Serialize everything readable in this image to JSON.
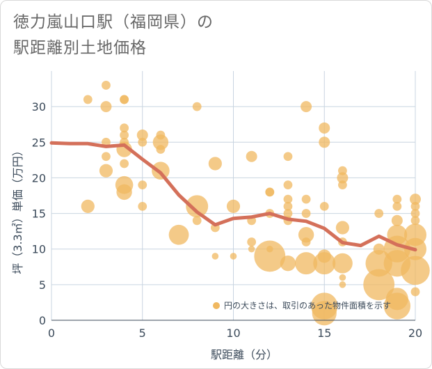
{
  "header": {
    "title_line1": "徳力嵐山口駅（福岡県）の",
    "title_line2": "駅距離別土地価格"
  },
  "colors": {
    "bubble": "#f0b860",
    "line": "#d4705a",
    "grid": "#c8d4e0",
    "axis_text": "#3b4a5a"
  },
  "chart_data": {
    "type": "scatter",
    "title": "徳力嵐山口駅（福岡県）の駅距離別土地価格",
    "xlabel": "駅距離（分）",
    "ylabel": "坪（3.3㎡）単価（万円）",
    "xlim": [
      0,
      20
    ],
    "ylim": [
      0,
      35
    ],
    "x_ticks": [
      0,
      5,
      10,
      15,
      20
    ],
    "y_ticks": [
      0,
      5,
      10,
      15,
      20,
      25,
      30
    ],
    "grid": true,
    "legend": {
      "text": "円の大きさは、取引のあった物件面積を示す",
      "placement": "bottom-right"
    },
    "series": [
      {
        "type": "bubble",
        "points": [
          [
            2,
            31,
            2
          ],
          [
            2,
            16,
            3
          ],
          [
            3,
            33,
            2
          ],
          [
            3,
            30,
            2.5
          ],
          [
            3,
            25,
            2
          ],
          [
            3,
            23,
            2
          ],
          [
            3,
            21,
            3
          ],
          [
            4,
            31,
            2
          ],
          [
            4,
            31,
            2
          ],
          [
            4,
            27,
            2
          ],
          [
            4,
            26,
            2
          ],
          [
            4,
            25,
            2
          ],
          [
            4,
            24,
            3.5
          ],
          [
            4,
            22,
            2
          ],
          [
            4,
            19,
            4
          ],
          [
            4,
            18,
            3.5
          ],
          [
            5,
            26,
            2.5
          ],
          [
            5,
            25,
            2
          ],
          [
            5,
            19,
            2
          ],
          [
            5,
            16,
            2
          ],
          [
            6,
            26,
            2
          ],
          [
            6,
            25,
            3.5
          ],
          [
            6,
            24,
            2
          ],
          [
            6,
            21,
            4
          ],
          [
            7,
            12,
            4.5
          ],
          [
            8,
            30,
            2
          ],
          [
            8,
            16,
            5
          ],
          [
            8,
            14,
            2
          ],
          [
            9,
            22,
            3
          ],
          [
            9,
            13,
            2
          ],
          [
            9,
            9,
            1.5
          ],
          [
            10,
            16,
            3
          ],
          [
            10,
            9,
            1.5
          ],
          [
            11,
            23,
            2.5
          ],
          [
            11,
            14,
            2
          ],
          [
            11,
            11,
            2
          ],
          [
            11,
            10,
            1.5
          ],
          [
            12,
            18,
            2
          ],
          [
            12,
            18,
            2
          ],
          [
            12,
            15,
            2
          ],
          [
            12,
            10,
            1.5
          ],
          [
            12,
            9,
            7
          ],
          [
            13,
            23,
            2
          ],
          [
            13,
            19,
            2
          ],
          [
            13,
            17,
            2
          ],
          [
            13,
            16,
            2
          ],
          [
            13,
            15,
            2
          ],
          [
            13,
            14,
            2
          ],
          [
            13,
            8,
            3.5
          ],
          [
            14,
            30,
            2.5
          ],
          [
            14,
            17,
            2
          ],
          [
            14,
            15,
            2
          ],
          [
            14,
            12,
            3.5
          ],
          [
            14,
            11,
            2
          ],
          [
            14,
            8,
            5
          ],
          [
            15,
            27,
            2.5
          ],
          [
            15,
            25,
            2.5
          ],
          [
            15,
            16,
            2
          ],
          [
            15,
            9,
            3
          ],
          [
            15,
            8,
            5
          ],
          [
            15,
            2,
            6
          ],
          [
            15,
            1,
            5.5
          ],
          [
            16,
            21,
            2
          ],
          [
            16,
            20,
            2.5
          ],
          [
            16,
            19,
            2
          ],
          [
            16,
            13,
            3
          ],
          [
            16,
            11,
            2
          ],
          [
            16,
            8,
            4.5
          ],
          [
            16,
            6,
            1.5
          ],
          [
            16,
            5,
            1.5
          ],
          [
            18,
            15,
            2
          ],
          [
            18,
            10,
            2.5
          ],
          [
            18,
            8,
            6
          ],
          [
            18,
            5,
            7
          ],
          [
            19,
            17,
            2
          ],
          [
            19,
            16,
            2
          ],
          [
            19,
            14,
            2.5
          ],
          [
            19,
            12,
            4.5
          ],
          [
            19,
            10,
            6
          ],
          [
            19,
            8,
            6
          ],
          [
            19,
            3,
            5
          ],
          [
            19,
            2,
            6
          ],
          [
            20,
            17,
            2.5
          ],
          [
            20,
            16,
            2
          ],
          [
            20,
            15,
            2
          ],
          [
            20,
            14,
            2
          ],
          [
            20,
            12,
            5
          ],
          [
            20,
            10,
            5
          ],
          [
            20,
            7,
            6.5
          ],
          [
            20,
            4,
            2
          ]
        ]
      },
      {
        "type": "line",
        "x": [
          0,
          1,
          2,
          3,
          4,
          5,
          6,
          7,
          8,
          9,
          10,
          11,
          12,
          13,
          14,
          15,
          16,
          17,
          18,
          19,
          20
        ],
        "values": [
          24.9,
          24.8,
          24.8,
          24.4,
          24.6,
          22.6,
          20.7,
          17.6,
          15.2,
          13.4,
          14.3,
          14.5,
          15.0,
          14.2,
          13.9,
          12.9,
          10.9,
          10.5,
          11.8,
          10.6,
          9.9
        ]
      }
    ]
  }
}
